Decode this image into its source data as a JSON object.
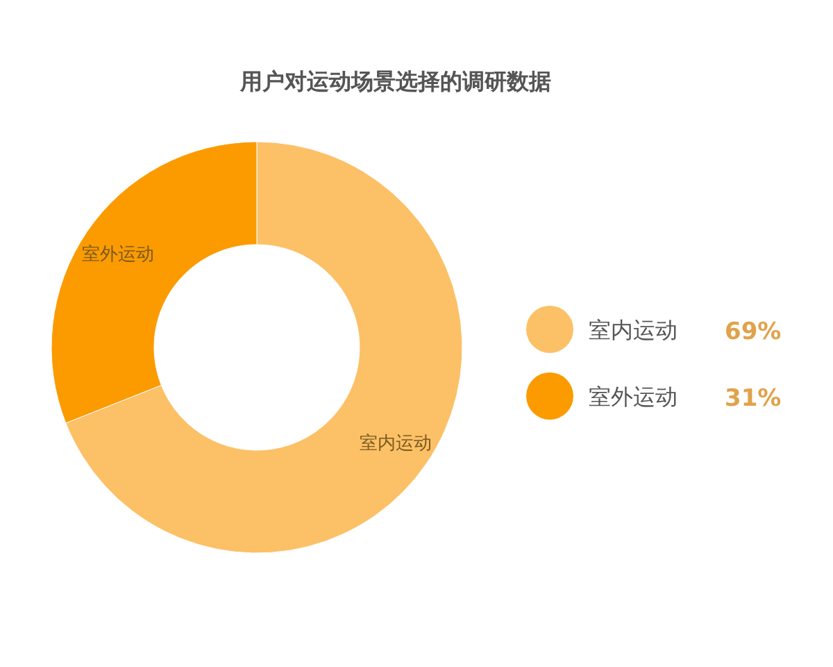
{
  "chart_data": {
    "type": "donut",
    "title": "用户对运动场景选择的调研数据",
    "categories": [
      "室内运动",
      "室外运动"
    ],
    "values": [
      69,
      31
    ],
    "colors": [
      "#fcc066",
      "#fb9b00"
    ],
    "value_labels": [
      "69%",
      "31%"
    ],
    "legend": "right"
  }
}
